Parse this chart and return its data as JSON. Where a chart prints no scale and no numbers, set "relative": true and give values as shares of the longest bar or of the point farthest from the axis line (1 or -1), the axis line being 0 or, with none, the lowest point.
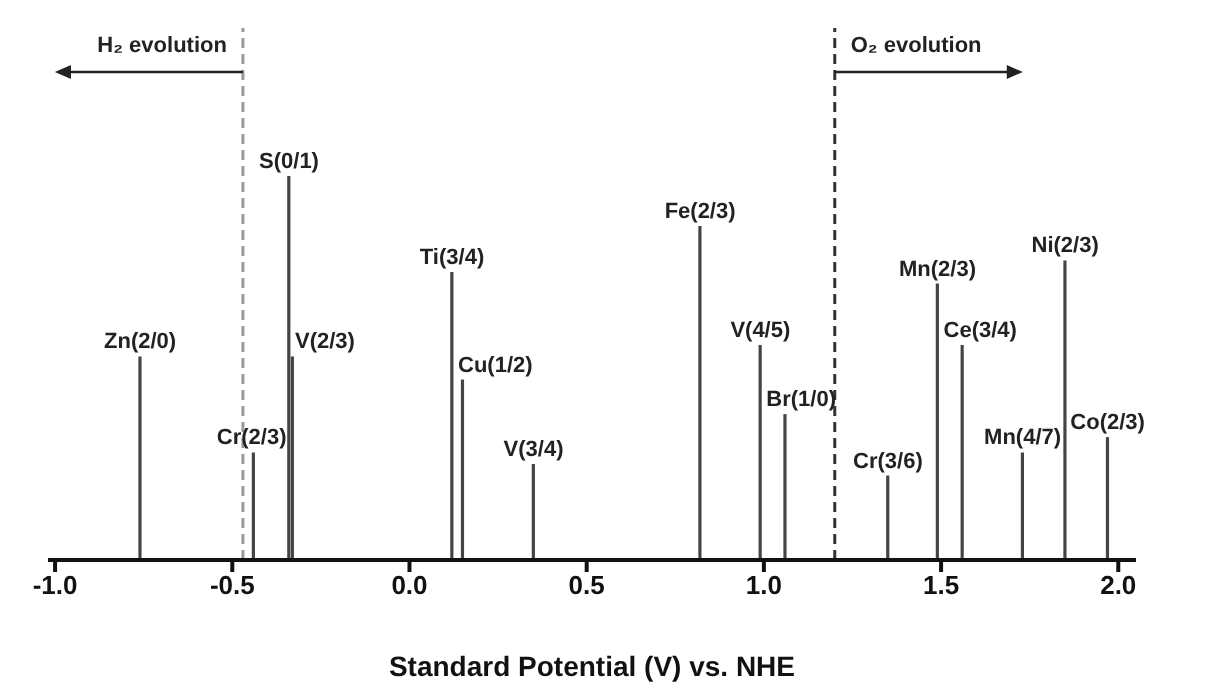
{
  "chart_data": {
    "type": "bar",
    "relative": true,
    "xlabel": "Standard Potential (V) vs. NHE",
    "x": [
      -0.76,
      -0.44,
      -0.34,
      -0.33,
      0.12,
      0.15,
      0.35,
      0.82,
      0.99,
      1.06,
      1.35,
      1.49,
      1.56,
      1.73,
      1.85,
      1.97
    ],
    "values": [
      0.53,
      0.28,
      1,
      0.53,
      0.75,
      0.47,
      0.25,
      0.87,
      0.56,
      0.38,
      0.22,
      0.72,
      0.56,
      0.28,
      0.78,
      0.32
    ],
    "color": "#444444",
    "xlim": [
      -1.02,
      2.05
    ],
    "xticks": [
      {
        "value": -1,
        "label": "-1.0"
      },
      {
        "value": -0.5,
        "label": "-0.5"
      },
      {
        "value": 0,
        "label": "0.0"
      },
      {
        "value": 0.5,
        "label": "0.5"
      },
      {
        "value": 1,
        "label": "1.0"
      },
      {
        "value": 1.5,
        "label": "1.5"
      },
      {
        "value": 2,
        "label": "2.0"
      }
    ],
    "ref_lines": [
      {
        "axis": "x",
        "value": -0.47,
        "label": "H₂ evolution",
        "color": "#999999",
        "line_style": "dashed"
      },
      {
        "axis": "x",
        "value": 1.2,
        "label": "O₂ evolution",
        "color": "#333333",
        "line_style": "dashed"
      }
    ],
    "annotations": [
      {
        "text": "Zn(2/0)",
        "x": -0.76,
        "y": 0.53
      },
      {
        "text": "Cr(2/3)",
        "x": -0.44,
        "y": 0.28
      },
      {
        "text": "S(0/1)",
        "x": -0.34,
        "y": 1
      },
      {
        "text": "V(2/3)",
        "x": -0.33,
        "y": 0.53
      },
      {
        "text": "Ti(3/4)",
        "x": 0.12,
        "y": 0.75
      },
      {
        "text": "Cu(1/2)",
        "x": 0.15,
        "y": 0.47
      },
      {
        "text": "V(3/4)",
        "x": 0.35,
        "y": 0.25
      },
      {
        "text": "Fe(2/3)",
        "x": 0.82,
        "y": 0.87
      },
      {
        "text": "V(4/5)",
        "x": 0.99,
        "y": 0.56
      },
      {
        "text": "Br(1/0)",
        "x": 1.06,
        "y": 0.38
      },
      {
        "text": "Cr(3/6)",
        "x": 1.35,
        "y": 0.22
      },
      {
        "text": "Mn(2/3)",
        "x": 1.49,
        "y": 0.72
      },
      {
        "text": "Ce(3/4)",
        "x": 1.56,
        "y": 0.56
      },
      {
        "text": "Mn(4/7)",
        "x": 1.73,
        "y": 0.28
      },
      {
        "text": "Ni(2/3)",
        "x": 1.85,
        "y": 0.78
      },
      {
        "text": "Co(2/3)",
        "x": 1.97,
        "y": 0.32
      }
    ]
  }
}
